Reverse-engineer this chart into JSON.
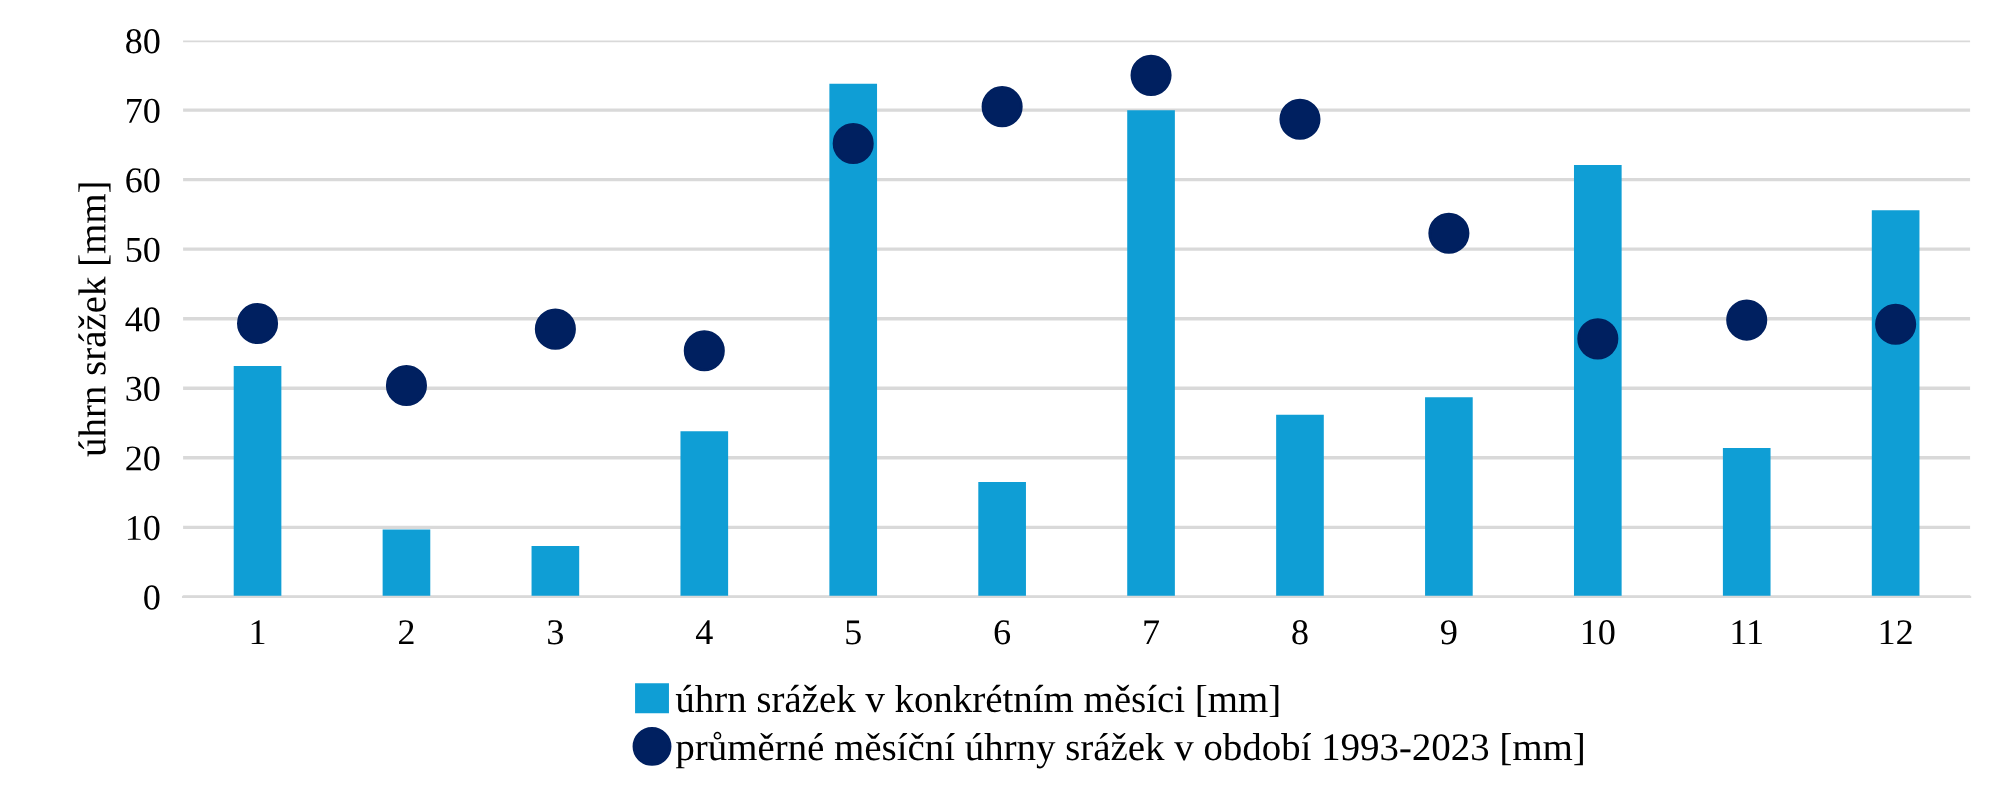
{
  "chart_data": {
    "type": "bar",
    "ylabel": "úhrn srážek [mm]",
    "categories": [
      "1",
      "2",
      "3",
      "4",
      "5",
      "6",
      "7",
      "8",
      "9",
      "10",
      "11",
      "12"
    ],
    "series": [
      {
        "name": "úhrn srážek v konkrétním měsíci [mm]",
        "color": "#0f9ed5",
        "values": [
          33.2,
          9.7,
          7.3,
          23.8,
          73.8,
          16.5,
          70.0,
          26.2,
          28.7,
          62.1,
          21.4,
          55.6
        ]
      },
      {
        "name": "průměrné měsíční úhrny srážek v období 1993-2023 [mm]",
        "type": "scatter",
        "marker": "circle",
        "color": "#002060",
        "values": [
          39.3,
          30.4,
          38.5,
          35.4,
          65.2,
          70.5,
          75.0,
          68.7,
          52.3,
          37.1,
          39.8,
          39.2
        ]
      }
    ],
    "ylim": [
      0,
      80
    ],
    "yticks": [
      0,
      10,
      20,
      30,
      40,
      50,
      60,
      70,
      80
    ],
    "grid": "y",
    "legend": "bottom"
  }
}
